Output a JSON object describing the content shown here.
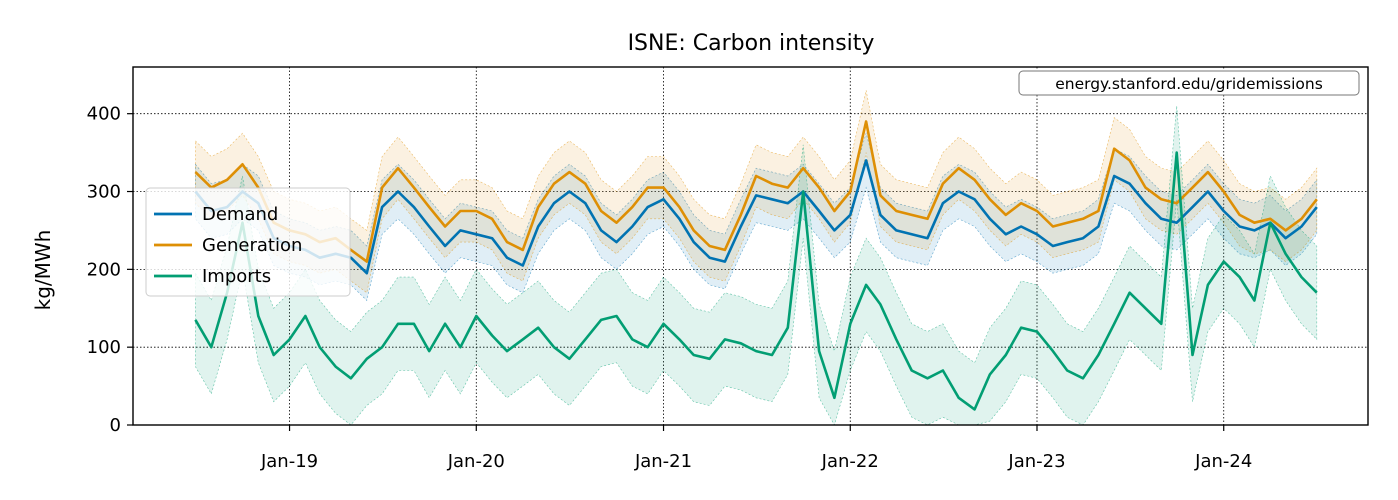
{
  "chart_data": {
    "type": "line",
    "title": "ISNE: Carbon intensity",
    "ylabel": "kg/MWh",
    "xlabel": "",
    "watermark": "energy.stanford.edu/gridemissions",
    "x_ticks": [
      "Jan-19",
      "Jan-20",
      "Jan-21",
      "Jan-22",
      "Jan-23",
      "Jan-24"
    ],
    "y_ticks": [
      "0",
      "100",
      "200",
      "300",
      "400"
    ],
    "ylim": [
      0,
      460
    ],
    "xlim": [
      "2018-03-01",
      "2024-10-09"
    ],
    "grid": true,
    "legend_position": "left",
    "band": "shaded range around each series",
    "x": [
      "2018-07",
      "2018-08",
      "2018-09",
      "2018-10",
      "2018-11",
      "2018-12",
      "2019-01",
      "2019-02",
      "2019-03",
      "2019-04",
      "2019-05",
      "2019-06",
      "2019-07",
      "2019-08",
      "2019-09",
      "2019-10",
      "2019-11",
      "2019-12",
      "2020-01",
      "2020-02",
      "2020-03",
      "2020-04",
      "2020-05",
      "2020-06",
      "2020-07",
      "2020-08",
      "2020-09",
      "2020-10",
      "2020-11",
      "2020-12",
      "2021-01",
      "2021-02",
      "2021-03",
      "2021-04",
      "2021-05",
      "2021-06",
      "2021-07",
      "2021-08",
      "2021-09",
      "2021-10",
      "2021-11",
      "2021-12",
      "2022-01",
      "2022-02",
      "2022-03",
      "2022-04",
      "2022-05",
      "2022-06",
      "2022-07",
      "2022-08",
      "2022-09",
      "2022-10",
      "2022-11",
      "2022-12",
      "2023-01",
      "2023-02",
      "2023-03",
      "2023-04",
      "2023-05",
      "2023-06",
      "2023-07",
      "2023-08",
      "2023-09",
      "2023-10",
      "2023-11",
      "2023-12",
      "2024-01",
      "2024-02",
      "2024-03",
      "2024-04",
      "2024-05",
      "2024-06",
      "2024-07"
    ],
    "series": [
      {
        "name": "Demand",
        "color": "#0173b2",
        "values": [
          300,
          275,
          280,
          300,
          285,
          240,
          230,
          225,
          215,
          220,
          215,
          195,
          280,
          300,
          280,
          255,
          230,
          250,
          245,
          240,
          215,
          205,
          255,
          285,
          300,
          285,
          250,
          235,
          255,
          280,
          290,
          265,
          235,
          215,
          210,
          255,
          295,
          290,
          285,
          300,
          275,
          250,
          270,
          340,
          270,
          250,
          245,
          240,
          285,
          300,
          290,
          265,
          245,
          255,
          245,
          230,
          235,
          240,
          255,
          320,
          310,
          285,
          265,
          260,
          280,
          300,
          275,
          255,
          250,
          260,
          240,
          255,
          280
        ],
        "band": [
          35,
          35,
          35,
          35,
          35,
          35,
          35,
          35,
          35,
          35,
          35,
          35,
          35,
          35,
          35,
          35,
          35,
          35,
          35,
          35,
          35,
          35,
          35,
          35,
          35,
          35,
          35,
          35,
          35,
          35,
          35,
          35,
          35,
          35,
          35,
          35,
          35,
          35,
          35,
          35,
          35,
          35,
          35,
          35,
          35,
          35,
          35,
          35,
          35,
          35,
          35,
          35,
          35,
          35,
          35,
          35,
          35,
          35,
          35,
          35,
          35,
          35,
          35,
          35,
          35,
          35,
          35,
          35,
          35,
          35,
          35,
          35,
          35
        ]
      },
      {
        "name": "Generation",
        "color": "#de8f05",
        "values": [
          325,
          305,
          315,
          335,
          305,
          260,
          250,
          245,
          235,
          240,
          225,
          210,
          305,
          330,
          305,
          280,
          255,
          275,
          275,
          265,
          235,
          225,
          280,
          310,
          325,
          310,
          275,
          260,
          280,
          305,
          305,
          280,
          250,
          230,
          225,
          270,
          320,
          310,
          305,
          330,
          305,
          275,
          300,
          390,
          295,
          275,
          270,
          265,
          310,
          330,
          315,
          290,
          270,
          285,
          275,
          255,
          260,
          265,
          275,
          355,
          340,
          305,
          290,
          285,
          305,
          325,
          300,
          270,
          260,
          265,
          250,
          265,
          290
        ],
        "band": [
          40,
          40,
          40,
          40,
          40,
          40,
          40,
          40,
          40,
          40,
          40,
          40,
          40,
          40,
          40,
          40,
          40,
          40,
          40,
          40,
          40,
          40,
          40,
          40,
          40,
          40,
          40,
          40,
          40,
          40,
          40,
          40,
          40,
          40,
          40,
          40,
          40,
          40,
          40,
          40,
          40,
          40,
          40,
          40,
          40,
          40,
          40,
          40,
          40,
          40,
          40,
          40,
          40,
          40,
          40,
          40,
          40,
          40,
          40,
          40,
          40,
          40,
          40,
          40,
          40,
          40,
          40,
          40,
          40,
          40,
          40,
          40,
          40
        ]
      },
      {
        "name": "Imports",
        "color": "#029e73",
        "values": [
          135,
          100,
          170,
          260,
          140,
          90,
          110,
          140,
          100,
          75,
          60,
          85,
          100,
          130,
          130,
          95,
          130,
          100,
          140,
          115,
          95,
          110,
          125,
          100,
          85,
          110,
          135,
          140,
          110,
          100,
          130,
          110,
          90,
          85,
          110,
          105,
          95,
          90,
          125,
          300,
          95,
          35,
          130,
          180,
          155,
          110,
          70,
          60,
          70,
          35,
          20,
          65,
          90,
          125,
          120,
          95,
          70,
          60,
          90,
          130,
          170,
          150,
          130,
          350,
          90,
          180,
          210,
          190,
          160,
          260,
          220,
          190,
          170
        ],
        "band": [
          60,
          60,
          60,
          60,
          60,
          60,
          60,
          60,
          60,
          60,
          60,
          60,
          60,
          60,
          60,
          60,
          60,
          60,
          60,
          60,
          60,
          60,
          60,
          60,
          60,
          60,
          60,
          60,
          60,
          60,
          60,
          60,
          60,
          60,
          60,
          60,
          60,
          60,
          60,
          60,
          60,
          60,
          60,
          60,
          60,
          60,
          60,
          60,
          60,
          60,
          60,
          60,
          60,
          60,
          60,
          60,
          60,
          60,
          60,
          60,
          60,
          60,
          60,
          60,
          60,
          60,
          60,
          60,
          60,
          60,
          60,
          60,
          60
        ]
      }
    ]
  }
}
